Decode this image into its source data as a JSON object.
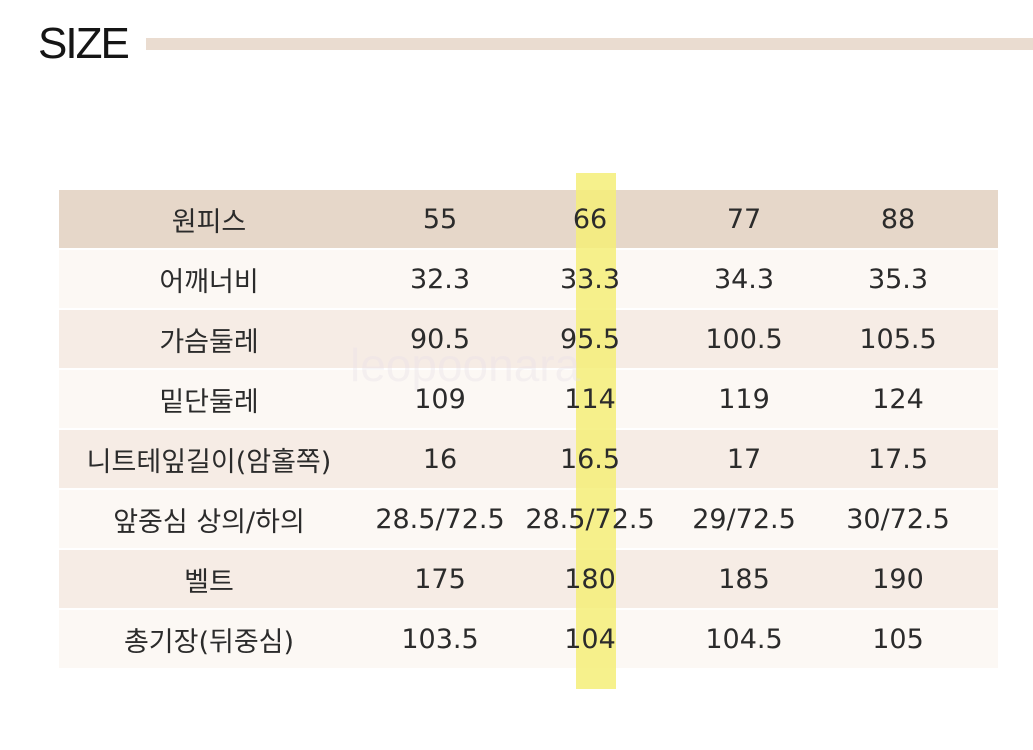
{
  "title": "SIZE",
  "watermark": "leopoonara",
  "colors": {
    "header_bg": "#e6d7c9",
    "row_light": "#fcf8f4",
    "row_dark": "#f6ece5",
    "highlight": "#f4ef78",
    "title_rule": "#eadcd0"
  },
  "table": {
    "header": [
      "원피스",
      "55",
      "66",
      "77",
      "88"
    ],
    "rows": [
      [
        "어깨너비",
        "32.3",
        "33.3",
        "34.3",
        "35.3"
      ],
      [
        "가슴둘레",
        "90.5",
        "95.5",
        "100.5",
        "105.5"
      ],
      [
        "밑단둘레",
        "109",
        "114",
        "119",
        "124"
      ],
      [
        "니트테잎길이(암홀쪽)",
        "16",
        "16.5",
        "17",
        "17.5"
      ],
      [
        "앞중심 상의/하의",
        "28.5/72.5",
        "28.5/72.5",
        "29/72.5",
        "30/72.5"
      ],
      [
        "벨트",
        "175",
        "180",
        "185",
        "190"
      ],
      [
        "총기장(뒤중심)",
        "103.5",
        "104",
        "104.5",
        "105"
      ]
    ],
    "highlighted_size": "66"
  }
}
